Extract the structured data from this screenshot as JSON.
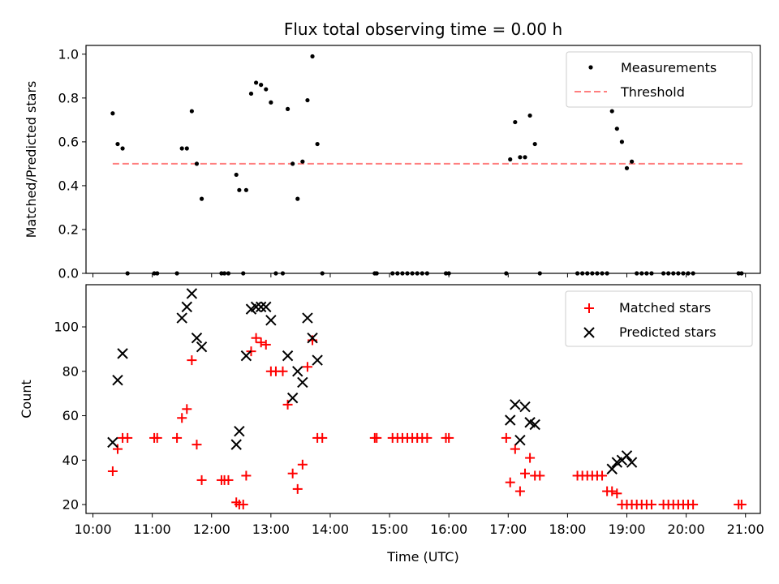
{
  "chart_data": [
    {
      "type": "scatter",
      "title": "Flux total observing time = 0.00 h",
      "xlabel": "",
      "ylabel": "Matched/Predicted stars",
      "xlim": [
        "09:53",
        "21:15"
      ],
      "ylim": [
        0,
        1.04
      ],
      "yticks": [
        0.0,
        0.2,
        0.4,
        0.6,
        0.8,
        1.0
      ],
      "ytick_labels": [
        "0.0",
        "0.2",
        "0.4",
        "0.6",
        "0.8",
        "1.0"
      ],
      "legend": "top-right",
      "series": [
        {
          "name": "Measurements",
          "kind": "dot",
          "color": "#000000",
          "x": [
            "10:20",
            "10:25",
            "10:30",
            "10:35",
            "11:02",
            "11:05",
            "11:25",
            "11:30",
            "11:35",
            "11:40",
            "11:45",
            "11:50",
            "12:10",
            "12:13",
            "12:17",
            "12:25",
            "12:28",
            "12:32",
            "12:35",
            "12:40",
            "12:45",
            "12:50",
            "12:55",
            "13:00",
            "13:05",
            "13:12",
            "13:17",
            "13:22",
            "13:27",
            "13:32",
            "13:37",
            "13:42",
            "13:47",
            "13:52",
            "14:45",
            "14:47",
            "15:03",
            "15:08",
            "15:13",
            "15:18",
            "15:23",
            "15:28",
            "15:33",
            "15:38",
            "15:57",
            "16:00",
            "16:58",
            "17:02",
            "17:07",
            "17:12",
            "17:17",
            "17:22",
            "17:27",
            "17:32",
            "18:10",
            "18:15",
            "18:20",
            "18:25",
            "18:30",
            "18:35",
            "18:40",
            "18:45",
            "18:50",
            "18:55",
            "19:00",
            "19:05",
            "19:10",
            "19:15",
            "19:20",
            "19:25",
            "19:37",
            "19:42",
            "19:47",
            "19:52",
            "19:57",
            "20:02",
            "20:07",
            "20:53",
            "20:56"
          ],
          "y": [
            0.73,
            0.59,
            0.57,
            0.0,
            0.0,
            0.0,
            0.0,
            0.57,
            0.57,
            0.74,
            0.5,
            0.34,
            0.0,
            0.0,
            0.0,
            0.45,
            0.38,
            0.0,
            0.38,
            0.82,
            0.87,
            0.86,
            0.84,
            0.78,
            0.0,
            0.0,
            0.75,
            0.5,
            0.34,
            0.51,
            0.79,
            0.99,
            0.59,
            0.0,
            0.0,
            0.0,
            0.0,
            0.0,
            0.0,
            0.0,
            0.0,
            0.0,
            0.0,
            0.0,
            0.0,
            0.0,
            0.0,
            0.52,
            0.69,
            0.53,
            0.53,
            0.72,
            0.59,
            0.0,
            0.0,
            0.0,
            0.0,
            0.0,
            0.0,
            0.0,
            0.0,
            0.74,
            0.66,
            0.6,
            0.48,
            0.51,
            0.0,
            0.0,
            0.0,
            0.0,
            0.0,
            0.0,
            0.0,
            0.0,
            0.0,
            0.0,
            0.0,
            0.0,
            0.0
          ]
        },
        {
          "name": "Threshold",
          "kind": "dashed-line",
          "color": "#ff7f7f",
          "x": [
            "10:20",
            "20:58"
          ],
          "y": [
            0.5,
            0.5
          ]
        }
      ]
    },
    {
      "type": "scatter",
      "title": "",
      "xlabel": "Time (UTC)",
      "ylabel": "Count",
      "xlim": [
        "09:53",
        "21:15"
      ],
      "ylim": [
        16,
        119
      ],
      "xticks": [
        "10:00",
        "11:00",
        "12:00",
        "13:00",
        "14:00",
        "15:00",
        "16:00",
        "17:00",
        "18:00",
        "19:00",
        "20:00",
        "21:00"
      ],
      "xtick_labels": [
        "10:00",
        "11:00",
        "12:00",
        "13:00",
        "14:00",
        "15:00",
        "16:00",
        "17:00",
        "18:00",
        "19:00",
        "20:00",
        "21:00"
      ],
      "yticks": [
        20,
        40,
        60,
        80,
        100
      ],
      "ytick_labels": [
        "20",
        "40",
        "60",
        "80",
        "100"
      ],
      "legend": "top-right",
      "series": [
        {
          "name": "Matched stars",
          "kind": "plus",
          "color": "#ff0000",
          "x": [
            "10:20",
            "10:25",
            "10:30",
            "10:35",
            "11:02",
            "11:05",
            "11:25",
            "11:30",
            "11:35",
            "11:40",
            "11:45",
            "11:50",
            "12:10",
            "12:13",
            "12:17",
            "12:25",
            "12:28",
            "12:32",
            "12:35",
            "12:40",
            "12:45",
            "12:50",
            "12:55",
            "13:00",
            "13:05",
            "13:12",
            "13:17",
            "13:22",
            "13:27",
            "13:32",
            "13:37",
            "13:42",
            "13:47",
            "13:52",
            "14:45",
            "14:47",
            "15:03",
            "15:08",
            "15:13",
            "15:18",
            "15:23",
            "15:28",
            "15:33",
            "15:38",
            "15:57",
            "16:00",
            "16:58",
            "17:02",
            "17:07",
            "17:12",
            "17:17",
            "17:22",
            "17:27",
            "17:32",
            "18:10",
            "18:15",
            "18:20",
            "18:25",
            "18:30",
            "18:35",
            "18:40",
            "18:45",
            "18:50",
            "18:55",
            "19:00",
            "19:05",
            "19:10",
            "19:15",
            "19:20",
            "19:25",
            "19:37",
            "19:42",
            "19:47",
            "19:52",
            "19:57",
            "20:02",
            "20:07",
            "20:53",
            "20:56"
          ],
          "y": [
            35,
            45,
            50,
            50,
            50,
            50,
            50,
            59,
            63,
            85,
            47,
            31,
            31,
            31,
            31,
            21,
            20,
            20,
            33,
            89,
            95,
            93,
            92,
            80,
            80,
            80,
            65,
            34,
            27,
            38,
            82,
            94,
            50,
            50,
            50,
            50,
            50,
            50,
            50,
            50,
            50,
            50,
            50,
            50,
            50,
            50,
            50,
            30,
            45,
            26,
            34,
            41,
            33,
            33,
            33,
            33,
            33,
            33,
            33,
            33,
            26,
            26,
            25,
            20,
            20,
            20,
            20,
            20,
            20,
            20,
            20,
            20,
            20,
            20,
            20,
            20,
            20,
            20,
            20
          ]
        },
        {
          "name": "Predicted stars",
          "kind": "x",
          "color": "#000000",
          "x": [
            "10:20",
            "10:25",
            "10:30",
            "11:30",
            "11:35",
            "11:40",
            "11:45",
            "11:50",
            "12:25",
            "12:28",
            "12:35",
            "12:40",
            "12:45",
            "12:50",
            "12:55",
            "13:00",
            "13:17",
            "13:22",
            "13:27",
            "13:32",
            "13:37",
            "13:42",
            "13:47",
            "17:02",
            "17:07",
            "17:12",
            "17:17",
            "17:22",
            "17:27",
            "18:45",
            "18:50",
            "18:55",
            "19:00",
            "19:05"
          ],
          "y": [
            48,
            76,
            88,
            104,
            109,
            115,
            95,
            91,
            47,
            53,
            87,
            108,
            109,
            109,
            109,
            103,
            87,
            68,
            80,
            75,
            104,
            95,
            85,
            58,
            65,
            49,
            64,
            57,
            56,
            36,
            39,
            40,
            42,
            39
          ]
        }
      ]
    }
  ]
}
